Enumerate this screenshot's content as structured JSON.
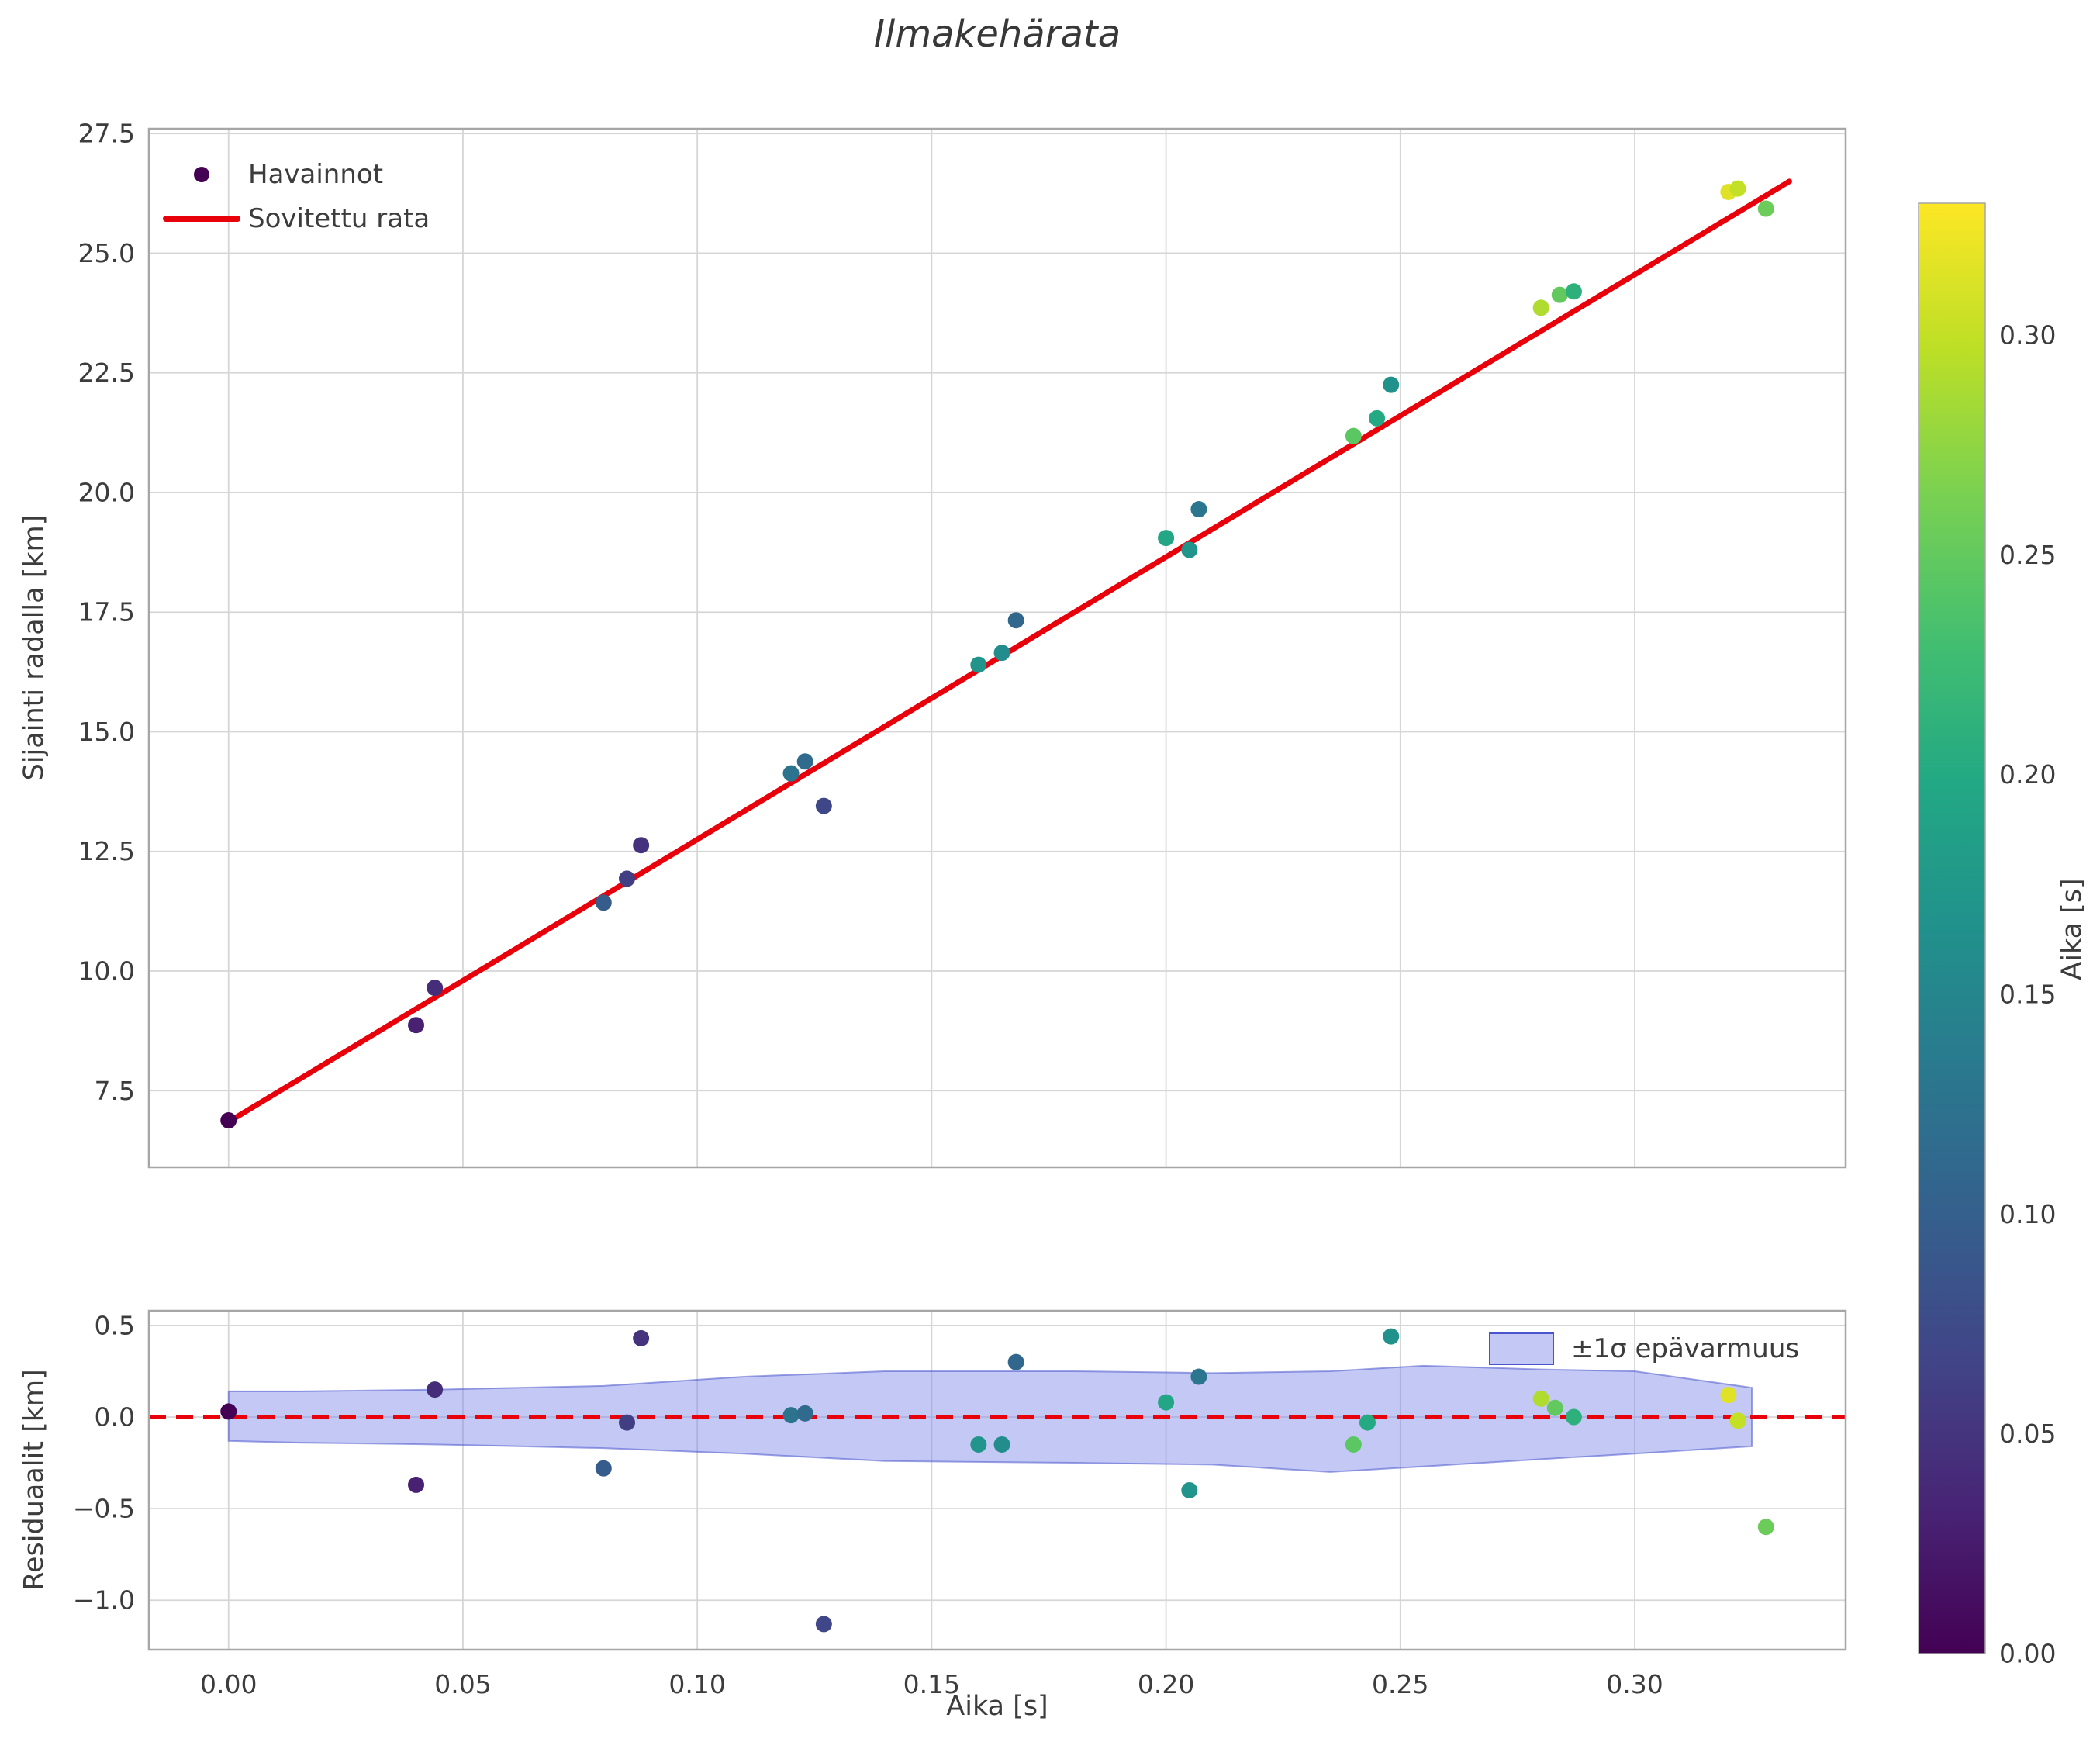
{
  "figure": {
    "title": "Ilmakehärata",
    "background": "#ffffff"
  },
  "styles": {
    "text_color": "#3c3c3c",
    "grid_color": "#d6d6d6",
    "spine_color": "#a6a6a6",
    "fit_color": "#e8000b",
    "band_fill": "#7b85e8",
    "band_edge": "#4a55cc"
  },
  "colormap": {
    "name": "viridis",
    "stops": [
      "#440154",
      "#482475",
      "#414487",
      "#355f8d",
      "#2a788e",
      "#21918c",
      "#22a884",
      "#44bf70",
      "#7ad151",
      "#bddf26",
      "#fde725"
    ]
  },
  "colorbar": {
    "label": "Aika [s]",
    "vmin": 0.0,
    "vmax": 0.33,
    "ticks": [
      0.0,
      0.05,
      0.1,
      0.15,
      0.2,
      0.25,
      0.3
    ]
  },
  "chart_data": [
    {
      "type": "scatter",
      "title": "Ilmakehärata",
      "xlabel": "",
      "ylabel": "Sijainti radalla [km]",
      "xlim": [
        -0.017,
        0.345
      ],
      "ylim": [
        5.9,
        27.6
      ],
      "xticks": [
        0.0,
        0.05,
        0.1,
        0.15,
        0.2,
        0.25,
        0.3
      ],
      "yticks": [
        7.5,
        10.0,
        12.5,
        15.0,
        17.5,
        20.0,
        22.5,
        25.0,
        27.5
      ],
      "x_tick_labels_visible": false,
      "grid": true,
      "legend": {
        "position": "upper left",
        "entries": [
          {
            "type": "marker",
            "label": "Havainnot"
          },
          {
            "type": "line",
            "label": "Sovitettu rata"
          }
        ]
      },
      "points_format": [
        "x_aika_s",
        "y_sijainti_km",
        "color_aika_s"
      ],
      "points": [
        [
          0.0,
          6.88,
          0.0
        ],
        [
          0.04,
          8.87,
          0.03
        ],
        [
          0.044,
          9.65,
          0.042
        ],
        [
          0.08,
          11.43,
          0.095
        ],
        [
          0.085,
          11.93,
          0.06
        ],
        [
          0.088,
          12.63,
          0.048
        ],
        [
          0.12,
          14.13,
          0.125
        ],
        [
          0.123,
          14.38,
          0.115
        ],
        [
          0.127,
          13.45,
          0.07
        ],
        [
          0.16,
          16.4,
          0.17
        ],
        [
          0.165,
          16.65,
          0.16
        ],
        [
          0.168,
          17.33,
          0.11
        ],
        [
          0.2,
          19.05,
          0.195
        ],
        [
          0.205,
          18.8,
          0.17
        ],
        [
          0.207,
          19.65,
          0.13
        ],
        [
          0.24,
          21.18,
          0.245
        ],
        [
          0.245,
          21.55,
          0.2
        ],
        [
          0.248,
          22.25,
          0.165
        ],
        [
          0.28,
          23.86,
          0.29
        ],
        [
          0.284,
          24.13,
          0.25
        ],
        [
          0.287,
          24.2,
          0.21
        ],
        [
          0.32,
          26.28,
          0.315
        ],
        [
          0.322,
          26.35,
          0.3
        ],
        [
          0.328,
          25.93,
          0.255
        ]
      ],
      "fit_line": {
        "label": "Sovitettu rata",
        "x": [
          0.0,
          0.333
        ],
        "y": [
          6.85,
          26.5
        ]
      }
    },
    {
      "type": "scatter",
      "title": "",
      "xlabel": "Aika [s]",
      "ylabel": "Residuaalit [km]",
      "xlim": [
        -0.017,
        0.345
      ],
      "ylim": [
        -1.27,
        0.58
      ],
      "xticks": [
        0.0,
        0.05,
        0.1,
        0.15,
        0.2,
        0.25,
        0.3
      ],
      "yticks": [
        -1.0,
        -0.5,
        0.0,
        0.5
      ],
      "x_tick_labels_visible": true,
      "grid": true,
      "legend": {
        "position": "upper right",
        "entries": [
          {
            "type": "patch",
            "label": "±1σ epävarmuus"
          }
        ]
      },
      "zero_line": {
        "y": 0.0,
        "dashed": true
      },
      "band": {
        "label": "±1σ epävarmuus",
        "x": [
          0.0,
          0.015,
          0.045,
          0.08,
          0.11,
          0.14,
          0.18,
          0.21,
          0.235,
          0.255,
          0.28,
          0.3,
          0.325
        ],
        "upper": [
          0.14,
          0.14,
          0.15,
          0.17,
          0.22,
          0.25,
          0.25,
          0.24,
          0.25,
          0.28,
          0.26,
          0.25,
          0.16
        ],
        "lower": [
          -0.13,
          -0.14,
          -0.15,
          -0.17,
          -0.2,
          -0.24,
          -0.25,
          -0.26,
          -0.3,
          -0.27,
          -0.23,
          -0.2,
          -0.16
        ]
      },
      "points_format": [
        "x_aika_s",
        "residual_km",
        "color_aika_s"
      ],
      "points": [
        [
          0.0,
          0.03,
          0.0
        ],
        [
          0.04,
          -0.37,
          0.03
        ],
        [
          0.044,
          0.15,
          0.042
        ],
        [
          0.08,
          -0.28,
          0.095
        ],
        [
          0.085,
          -0.03,
          0.06
        ],
        [
          0.088,
          0.43,
          0.048
        ],
        [
          0.12,
          0.01,
          0.125
        ],
        [
          0.123,
          0.02,
          0.115
        ],
        [
          0.127,
          -1.13,
          0.07
        ],
        [
          0.16,
          -0.15,
          0.17
        ],
        [
          0.165,
          -0.15,
          0.16
        ],
        [
          0.168,
          0.3,
          0.11
        ],
        [
          0.2,
          0.08,
          0.195
        ],
        [
          0.205,
          -0.4,
          0.17
        ],
        [
          0.207,
          0.22,
          0.13
        ],
        [
          0.24,
          -0.15,
          0.245
        ],
        [
          0.243,
          -0.03,
          0.2
        ],
        [
          0.248,
          0.44,
          0.165
        ],
        [
          0.28,
          0.1,
          0.29
        ],
        [
          0.283,
          0.05,
          0.25
        ],
        [
          0.287,
          0.0,
          0.21
        ],
        [
          0.32,
          0.12,
          0.315
        ],
        [
          0.322,
          -0.02,
          0.3
        ],
        [
          0.328,
          -0.6,
          0.255
        ]
      ]
    }
  ]
}
